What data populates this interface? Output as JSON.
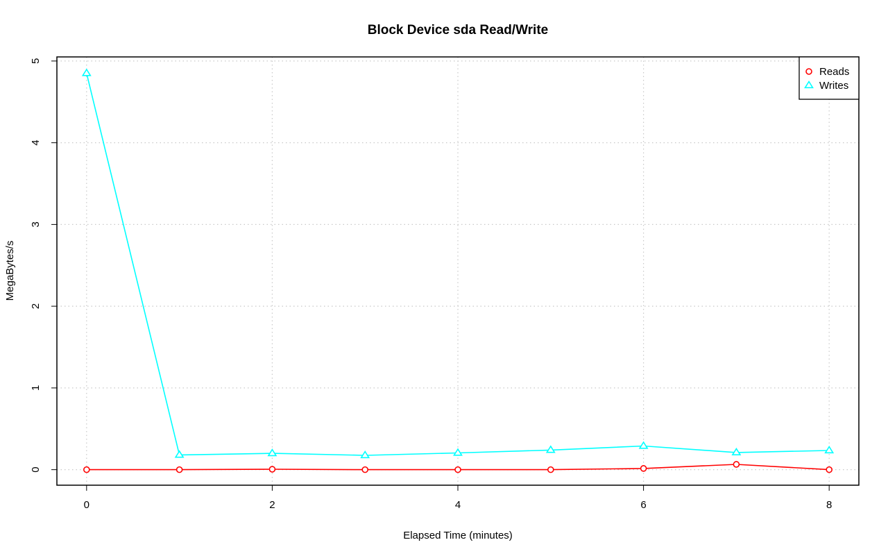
{
  "chart_data": {
    "type": "line",
    "title": "Block Device sda Read/Write",
    "xlabel": "Elapsed Time (minutes)",
    "ylabel": "MegaBytes/s",
    "xlim": [
      -0.32,
      8.32
    ],
    "ylim": [
      -0.19,
      5.05
    ],
    "xticks": [
      0,
      2,
      4,
      6,
      8
    ],
    "yticks": [
      0,
      1,
      2,
      3,
      4,
      5
    ],
    "grid": true,
    "legend_position": "top-right",
    "x": [
      0,
      1,
      2,
      3,
      4,
      5,
      6,
      7,
      8
    ],
    "series": [
      {
        "name": "Reads",
        "color": "#ff0000",
        "marker": "circle",
        "values": [
          0.0,
          0.0,
          0.005,
          0.0,
          0.0,
          0.0,
          0.015,
          0.065,
          0.0
        ]
      },
      {
        "name": "Writes",
        "color": "#00ffff",
        "marker": "triangle",
        "values": [
          4.85,
          0.18,
          0.2,
          0.175,
          0.205,
          0.24,
          0.29,
          0.21,
          0.235
        ]
      }
    ]
  }
}
